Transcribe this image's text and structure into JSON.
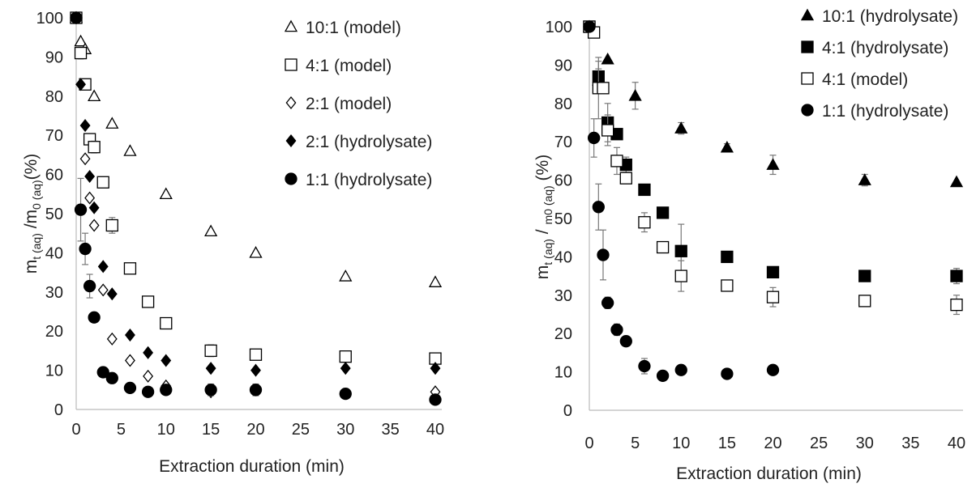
{
  "chart_data": [
    {
      "type": "scatter",
      "xlabel": "Extraction duration (min)",
      "ylabel_parts": [
        "m",
        "t (aq)",
        " /m",
        "0 (aq)",
        "(%)"
      ],
      "xlim": [
        0,
        40
      ],
      "ylim": [
        0,
        100
      ],
      "xticks": [
        0,
        5,
        10,
        15,
        20,
        25,
        30,
        35,
        40
      ],
      "yticks": [
        0,
        10,
        20,
        30,
        40,
        50,
        60,
        70,
        80,
        90,
        100
      ],
      "grid": false,
      "legend_position": "top-right",
      "series": [
        {
          "name": "10:1 (model)",
          "marker": "triangle-open",
          "x": [
            0,
            0.5,
            1,
            2,
            4,
            6,
            10,
            15,
            20,
            30,
            40
          ],
          "y": [
            100,
            94,
            92,
            80,
            73,
            66,
            55,
            45.5,
            40,
            34,
            32.5
          ],
          "err": [
            0,
            0,
            0,
            0,
            0,
            0,
            0,
            0,
            0,
            0,
            0
          ]
        },
        {
          "name": "4:1 (model)",
          "marker": "square-open",
          "x": [
            0,
            0.5,
            1,
            1.5,
            2,
            3,
            4,
            6,
            8,
            10,
            15,
            20,
            30,
            40
          ],
          "y": [
            100,
            91,
            83,
            69,
            67,
            58,
            47,
            36,
            27.5,
            22,
            15,
            14,
            13.5,
            13
          ],
          "err": [
            0,
            1.5,
            0,
            0,
            1.5,
            0,
            2,
            1,
            1,
            0,
            1.5,
            0,
            0,
            0
          ]
        },
        {
          "name": "2:1 (model)",
          "marker": "diamond-open",
          "x": [
            0,
            1,
            1.5,
            2,
            3,
            4,
            6,
            8,
            10,
            15,
            20,
            40
          ],
          "y": [
            100,
            64,
            54,
            47,
            30.5,
            18,
            12.5,
            8.5,
            6,
            4.5,
            5,
            4.5
          ],
          "err": [
            0,
            0,
            0,
            0,
            0,
            0,
            0,
            0,
            0,
            0,
            0,
            0
          ]
        },
        {
          "name": "2:1 (hydrolysate)",
          "marker": "diamond-filled",
          "x": [
            0,
            0.5,
            1,
            1.5,
            2,
            3,
            4,
            6,
            8,
            10,
            15,
            20,
            30,
            40
          ],
          "y": [
            100,
            83,
            72.5,
            59.5,
            51.5,
            36.5,
            29.5,
            19,
            14.5,
            12.5,
            10.5,
            10,
            10.5,
            10.5
          ],
          "err": [
            0,
            0,
            0,
            0,
            0,
            0,
            0,
            0,
            0,
            0,
            0,
            0,
            0,
            0
          ]
        },
        {
          "name": "1:1 (hydrolysate)",
          "marker": "circle-filled",
          "x": [
            0,
            0.5,
            1,
            1.5,
            2,
            3,
            4,
            6,
            8,
            10,
            15,
            20,
            30,
            40
          ],
          "y": [
            100,
            51,
            41,
            31.5,
            23.5,
            9.5,
            8,
            5.5,
            4.5,
            5,
            5,
            5,
            4,
            2.5
          ],
          "err": [
            0,
            8,
            4,
            3,
            0,
            0,
            0,
            0,
            0,
            1,
            1.5,
            1.5,
            0,
            0
          ]
        }
      ]
    },
    {
      "type": "scatter",
      "xlabel": "Extraction duration (min)",
      "ylabel_parts": [
        "m",
        "t (aq)",
        " / ",
        "m0 (aq)",
        " (%)"
      ],
      "xlim": [
        0,
        40
      ],
      "ylim": [
        0,
        100
      ],
      "xticks": [
        0,
        5,
        10,
        15,
        20,
        25,
        30,
        35,
        40
      ],
      "yticks": [
        0,
        10,
        20,
        30,
        40,
        50,
        60,
        70,
        80,
        90,
        100
      ],
      "grid": false,
      "legend_position": "top-right",
      "series": [
        {
          "name": "10:1 (hydrolysate)",
          "marker": "triangle-filled",
          "x": [
            0,
            1,
            2,
            5,
            10,
            15,
            20,
            30,
            40
          ],
          "y": [
            100,
            86,
            91.5,
            82,
            73.5,
            68.5,
            64,
            60,
            59.5
          ],
          "err": [
            0,
            3,
            0,
            3.5,
            1.5,
            1,
            2.5,
            1.5,
            0
          ]
        },
        {
          "name": "4:1 (hydrolysate)",
          "marker": "square-filled",
          "x": [
            0,
            1,
            2,
            3,
            4,
            6,
            8,
            10,
            15,
            20,
            30,
            40
          ],
          "y": [
            100,
            87,
            75,
            72,
            64,
            57.5,
            51.5,
            41.5,
            40,
            36,
            35,
            35
          ],
          "err": [
            0,
            4,
            5,
            0,
            2,
            0,
            0,
            7,
            0,
            0,
            0,
            2
          ]
        },
        {
          "name": "4:1 (model)",
          "marker": "square-open",
          "x": [
            0,
            0.5,
            1,
            1.5,
            2,
            3,
            4,
            6,
            8,
            10,
            15,
            20,
            30,
            40
          ],
          "y": [
            100,
            98.5,
            84,
            84,
            73,
            65,
            60.5,
            49,
            42.5,
            35,
            32.5,
            29.5,
            28.5,
            27.5
          ],
          "err": [
            0,
            0,
            8,
            0,
            4,
            3.5,
            0,
            2.5,
            0,
            4,
            0,
            2.5,
            0,
            2.5
          ]
        },
        {
          "name": "1:1 (hydrolysate)",
          "marker": "circle-filled",
          "x": [
            0,
            0.5,
            1,
            1.5,
            2,
            3,
            4,
            6,
            8,
            10,
            15,
            20
          ],
          "y": [
            100,
            71,
            53,
            40.5,
            28,
            21,
            18,
            11.5,
            9,
            10.5,
            9.5,
            10.5
          ],
          "err": [
            0,
            5,
            6,
            6.5,
            1.5,
            1.5,
            0,
            2,
            0,
            0,
            0,
            0
          ]
        }
      ]
    }
  ]
}
